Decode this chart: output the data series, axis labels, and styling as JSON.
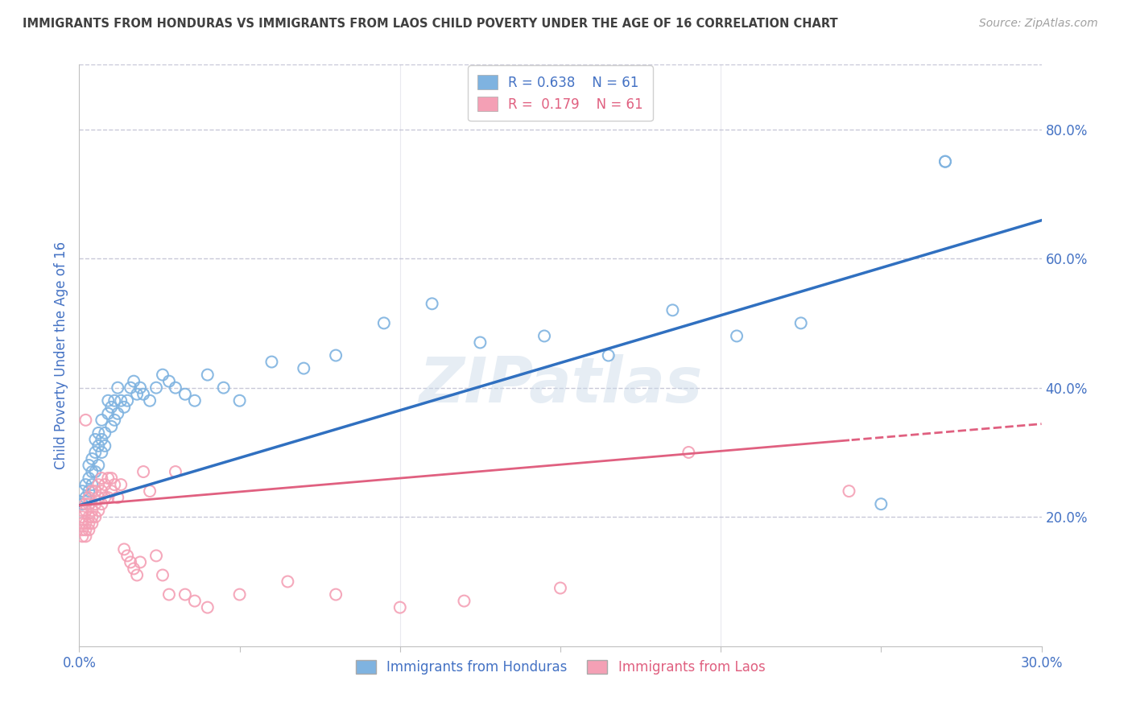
{
  "title": "IMMIGRANTS FROM HONDURAS VS IMMIGRANTS FROM LAOS CHILD POVERTY UNDER THE AGE OF 16 CORRELATION CHART",
  "source": "Source: ZipAtlas.com",
  "ylabel": "Child Poverty Under the Age of 16",
  "xlim": [
    0.0,
    0.3
  ],
  "ylim": [
    0.0,
    0.9
  ],
  "xticks": [
    0.0,
    0.05,
    0.1,
    0.15,
    0.2,
    0.25,
    0.3
  ],
  "xticklabels": [
    "0.0%",
    "",
    "",
    "",
    "",
    "",
    "30.0%"
  ],
  "yticks": [
    0.2,
    0.4,
    0.6,
    0.8
  ],
  "yticklabels": [
    "20.0%",
    "40.0%",
    "60.0%",
    "80.0%"
  ],
  "legend_label1": "Immigrants from Honduras",
  "legend_label2": "Immigrants from Laos",
  "blue_color": "#7fb3e0",
  "pink_color": "#f4a0b5",
  "blue_line_color": "#3070c0",
  "pink_line_color": "#e06080",
  "tick_color": "#4472c4",
  "grid_color": "#c8c8d8",
  "watermark": "ZIPatlas",
  "blue_intercept": 0.218,
  "blue_slope": 1.47,
  "pink_intercept": 0.218,
  "pink_slope": 0.42,
  "honduras_x": [
    0.001,
    0.001,
    0.002,
    0.002,
    0.003,
    0.003,
    0.003,
    0.004,
    0.004,
    0.004,
    0.005,
    0.005,
    0.005,
    0.006,
    0.006,
    0.006,
    0.007,
    0.007,
    0.007,
    0.008,
    0.008,
    0.009,
    0.009,
    0.01,
    0.01,
    0.011,
    0.011,
    0.012,
    0.012,
    0.013,
    0.014,
    0.015,
    0.016,
    0.017,
    0.018,
    0.019,
    0.02,
    0.022,
    0.024,
    0.026,
    0.028,
    0.03,
    0.033,
    0.036,
    0.04,
    0.045,
    0.05,
    0.06,
    0.07,
    0.08,
    0.095,
    0.11,
    0.125,
    0.145,
    0.165,
    0.185,
    0.205,
    0.225,
    0.25,
    0.27,
    0.27
  ],
  "honduras_y": [
    0.22,
    0.24,
    0.23,
    0.25,
    0.24,
    0.26,
    0.28,
    0.25,
    0.27,
    0.29,
    0.27,
    0.3,
    0.32,
    0.28,
    0.31,
    0.33,
    0.3,
    0.32,
    0.35,
    0.31,
    0.33,
    0.36,
    0.38,
    0.34,
    0.37,
    0.35,
    0.38,
    0.36,
    0.4,
    0.38,
    0.37,
    0.38,
    0.4,
    0.41,
    0.39,
    0.4,
    0.39,
    0.38,
    0.4,
    0.42,
    0.41,
    0.4,
    0.39,
    0.38,
    0.42,
    0.4,
    0.38,
    0.44,
    0.43,
    0.45,
    0.5,
    0.53,
    0.47,
    0.48,
    0.45,
    0.52,
    0.48,
    0.5,
    0.22,
    0.75,
    0.75
  ],
  "laos_x": [
    0.001,
    0.001,
    0.001,
    0.001,
    0.001,
    0.002,
    0.002,
    0.002,
    0.002,
    0.002,
    0.002,
    0.003,
    0.003,
    0.003,
    0.003,
    0.003,
    0.004,
    0.004,
    0.004,
    0.004,
    0.005,
    0.005,
    0.005,
    0.006,
    0.006,
    0.006,
    0.007,
    0.007,
    0.007,
    0.008,
    0.008,
    0.009,
    0.009,
    0.01,
    0.01,
    0.011,
    0.012,
    0.013,
    0.014,
    0.015,
    0.016,
    0.017,
    0.018,
    0.019,
    0.02,
    0.022,
    0.024,
    0.026,
    0.028,
    0.03,
    0.033,
    0.036,
    0.04,
    0.05,
    0.065,
    0.08,
    0.1,
    0.12,
    0.15,
    0.19,
    0.24
  ],
  "laos_y": [
    0.17,
    0.18,
    0.19,
    0.2,
    0.21,
    0.17,
    0.18,
    0.19,
    0.21,
    0.22,
    0.35,
    0.18,
    0.19,
    0.2,
    0.22,
    0.23,
    0.19,
    0.2,
    0.21,
    0.24,
    0.2,
    0.22,
    0.24,
    0.21,
    0.23,
    0.25,
    0.22,
    0.24,
    0.26,
    0.23,
    0.25,
    0.23,
    0.26,
    0.24,
    0.26,
    0.25,
    0.23,
    0.25,
    0.15,
    0.14,
    0.13,
    0.12,
    0.11,
    0.13,
    0.27,
    0.24,
    0.14,
    0.11,
    0.08,
    0.27,
    0.08,
    0.07,
    0.06,
    0.08,
    0.1,
    0.08,
    0.06,
    0.07,
    0.09,
    0.3,
    0.24
  ]
}
